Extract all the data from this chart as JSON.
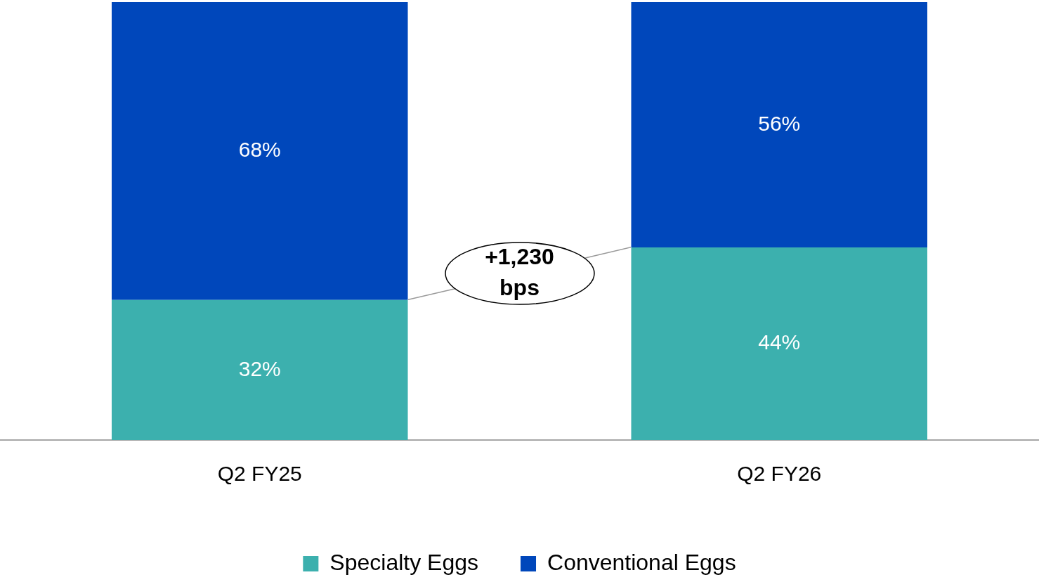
{
  "chart_data": {
    "type": "bar",
    "stacked": true,
    "categories": [
      "Q2 FY25",
      "Q2 FY26"
    ],
    "series": [
      {
        "name": "Specialty Eggs",
        "color": "#3cb0ae",
        "values": [
          32,
          44
        ],
        "value_labels": [
          "32%",
          "44%"
        ]
      },
      {
        "name": "Conventional Eggs",
        "color": "#0047bb",
        "values": [
          68,
          56
        ],
        "value_labels": [
          "68%",
          "56%"
        ]
      }
    ],
    "ylim": [
      0,
      100
    ],
    "tick_labels": "x",
    "grid": false,
    "legend": "bottom",
    "annotations": [
      "+1,230 bps"
    ]
  }
}
